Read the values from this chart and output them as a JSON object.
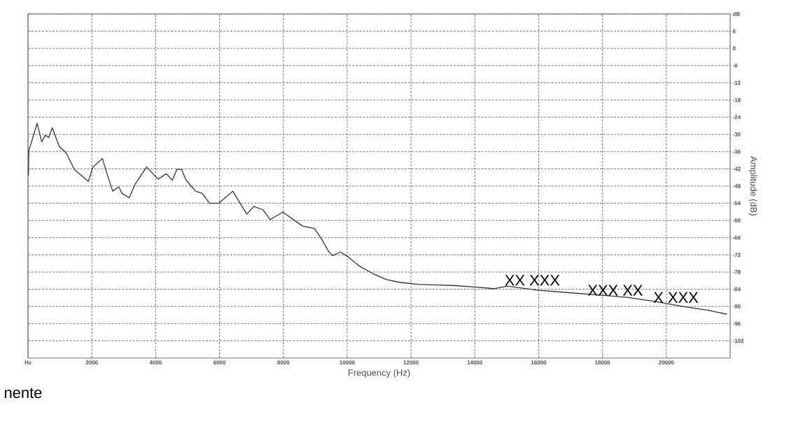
{
  "chart_data": {
    "type": "line",
    "xlabel": "Frequency (Hz)",
    "ylabel": "Amplitude (dB)",
    "xlim": [
      0,
      22000
    ],
    "ylim": [
      -108,
      12
    ],
    "xticks": [
      {
        "value": 0,
        "label": "Hz"
      },
      2000,
      4000,
      6000,
      8000,
      10000,
      12000,
      14000,
      16000,
      18000,
      20000
    ],
    "yticks": [
      {
        "value": 12,
        "label": "dB"
      },
      6,
      0,
      -6,
      -12,
      -18,
      -24,
      -30,
      -36,
      -42,
      -48,
      -54,
      -60,
      -66,
      -72,
      -78,
      -84,
      -90,
      -96,
      -102
    ],
    "grid": true,
    "marker": "none",
    "line_style": "solid",
    "series": [
      {
        "color": "#333333",
        "x": [
          10,
          30,
          100,
          285,
          430,
          540,
          650,
          760,
          980,
          1195,
          1450,
          1890,
          2035,
          2330,
          2475,
          2655,
          2840,
          2950,
          3170,
          3350,
          3715,
          4080,
          4335,
          4520,
          4665,
          4810,
          4955,
          5250,
          5465,
          5685,
          5980,
          6415,
          6855,
          7075,
          7365,
          7585,
          7985,
          8605,
          8970,
          9200,
          9400,
          9536,
          9790,
          10040,
          10380,
          10800,
          11220,
          11645,
          12235,
          12740,
          13330,
          14005,
          14595,
          15015,
          15945,
          16955,
          17970,
          18810,
          19655,
          20500,
          21340,
          21890
        ],
        "values": [
          -44.5,
          -35.3,
          -33.0,
          -26.1,
          -32.6,
          -30.3,
          -31.1,
          -27.7,
          -34.2,
          -36.4,
          -42.2,
          -46.4,
          -41.4,
          -38.4,
          -43.7,
          -49.8,
          -48.3,
          -50.6,
          -52.1,
          -47.5,
          -41.4,
          -45.6,
          -43.7,
          -46.0,
          -42.2,
          -42.2,
          -46.0,
          -49.8,
          -50.6,
          -54.0,
          -54.0,
          -49.8,
          -57.8,
          -55.1,
          -56.3,
          -59.7,
          -57.1,
          -62.0,
          -62.8,
          -66.5,
          -70.5,
          -72.3,
          -71.0,
          -72.8,
          -75.9,
          -78.5,
          -80.6,
          -81.6,
          -82.3,
          -82.5,
          -82.7,
          -83.2,
          -83.8,
          -82.9,
          -84.3,
          -85.2,
          -86.1,
          -86.9,
          -88.3,
          -90.0,
          -91.4,
          -92.7
        ]
      }
    ],
    "annotations": [
      {
        "text": "XX XXX",
        "x": 15800,
        "y": -83
      },
      {
        "text": "XXX XX",
        "x": 18400,
        "y": -86.5
      },
      {
        "text": "X XXX",
        "x": 20300,
        "y": -89
      },
      "nente"
    ]
  }
}
